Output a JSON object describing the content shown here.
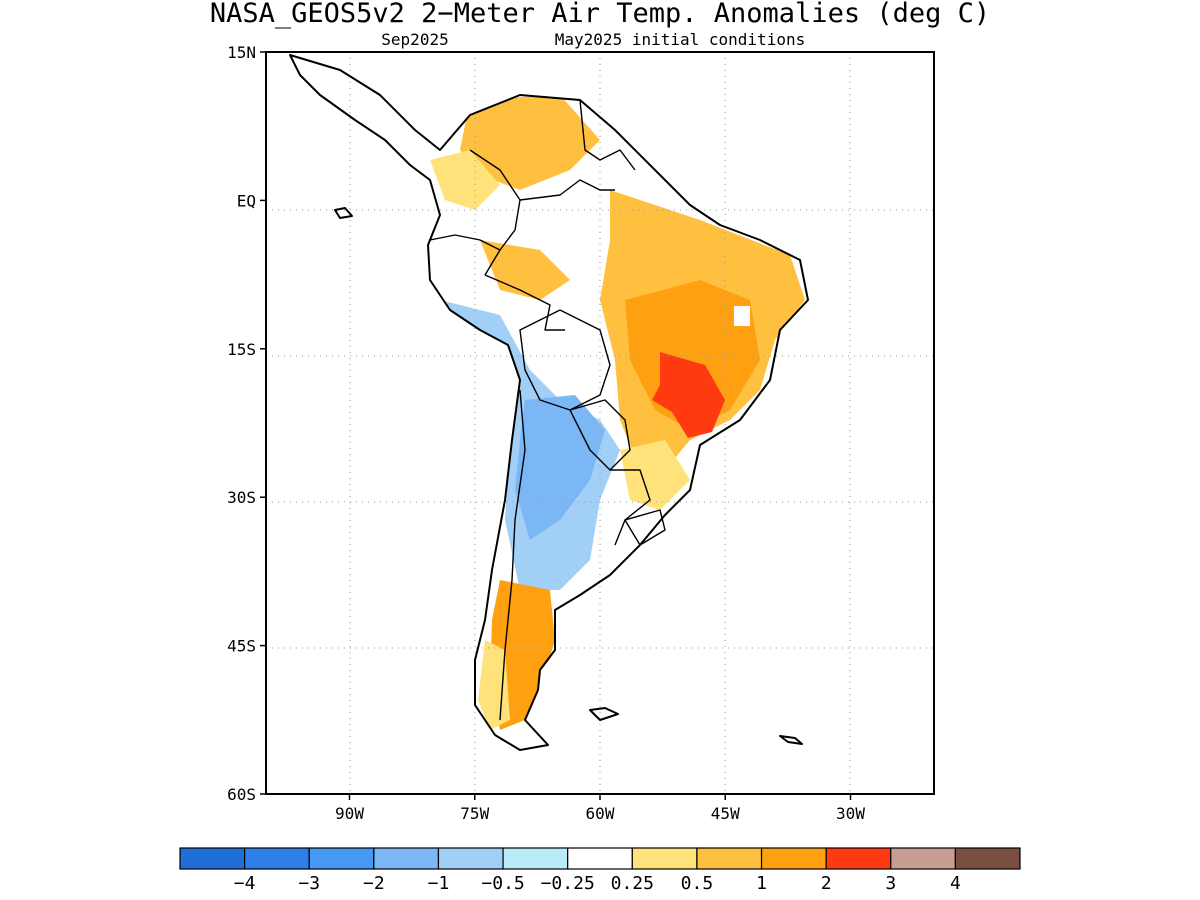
{
  "title": "NASA_GEOS5v2 2−Meter Air Temp. Anomalies (deg C)",
  "subtitle_left": "Sep2025",
  "subtitle_right": "May2025 initial conditions",
  "map": {
    "lon_range": [
      -100,
      -20
    ],
    "lat_range": [
      -60,
      15
    ],
    "lat_ticks": [
      {
        "value": 15,
        "label": "15N"
      },
      {
        "value": 0,
        "label": "EQ"
      },
      {
        "value": -15,
        "label": "15S"
      },
      {
        "value": -30,
        "label": "30S"
      },
      {
        "value": -45,
        "label": "45S"
      },
      {
        "value": -60,
        "label": "60S"
      }
    ],
    "lon_ticks": [
      {
        "value": -90,
        "label": "90W"
      },
      {
        "value": -75,
        "label": "75W"
      },
      {
        "value": -60,
        "label": "60W"
      },
      {
        "value": -45,
        "label": "45W"
      },
      {
        "value": -30,
        "label": "30W"
      }
    ],
    "grid": true
  },
  "colorbar": {
    "colors": [
      "#1f6fd6",
      "#2f7fe8",
      "#4599f0",
      "#7bb7f5",
      "#a2cff6",
      "#b9ecf8",
      "#ffffff",
      "#ffe27a",
      "#ffc040",
      "#ffa010",
      "#ff3a10",
      "#c89e92",
      "#7a4f41"
    ],
    "labels": [
      "−4",
      "−3",
      "−2",
      "−1",
      "−0.5",
      "−0.25",
      "0.25",
      "0.5",
      "1",
      "2",
      "3",
      "4"
    ]
  }
}
